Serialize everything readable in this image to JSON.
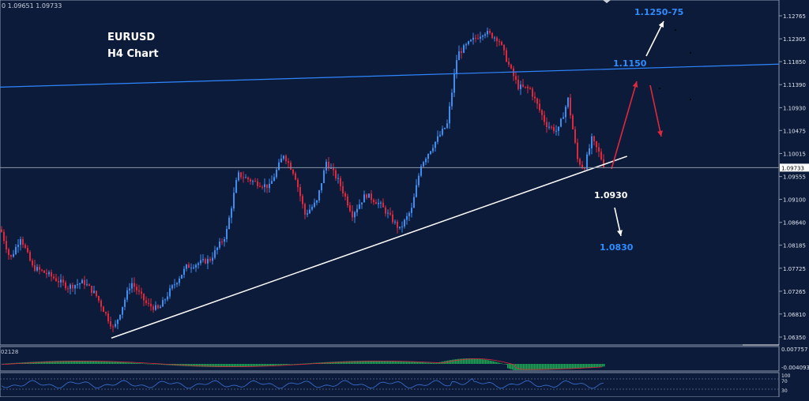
{
  "header": {
    "ohlc": "0 1.09651 1.09733"
  },
  "chart_title": {
    "symbol": "EURUSD",
    "timeframe": "H4 Chart"
  },
  "chart_data": {
    "type": "candlestick",
    "ylim": [
      1.0605,
      1.1288
    ],
    "y_ticks": [
      "1.12765",
      "1.12305",
      "1.11850",
      "1.11390",
      "1.10930",
      "1.10475",
      "1.10015",
      "1.09555",
      "1.09100",
      "1.08640",
      "1.08185",
      "1.07725",
      "1.07265",
      "1.06810",
      "1.06350"
    ],
    "current_price": "1.09733",
    "annotations": {
      "upper_target": "1.1250-75",
      "resistance": "1.1150",
      "support": "1.0930",
      "lower_target": "1.0830"
    },
    "upper_line": {
      "from": [
        0,
        1.1134
      ],
      "to": [
        1,
        1.118
      ]
    },
    "support_line": {
      "from": [
        0.143,
        1.0633
      ],
      "to": [
        0.805,
        1.0996
      ]
    },
    "colors": {
      "bull": "#3d8ef0",
      "bear": "#e0283c",
      "background": "#0c1b3a",
      "blue_line": "#2f86ff",
      "support_line": "#ffffff",
      "red_arrow": "#e0283c"
    },
    "indicators": {
      "macd": {
        "label": "02128",
        "ticks": [
          "0.007757",
          "-0.004093"
        ]
      },
      "rsi": {
        "ticks": [
          "100",
          "70",
          "30"
        ]
      }
    }
  }
}
